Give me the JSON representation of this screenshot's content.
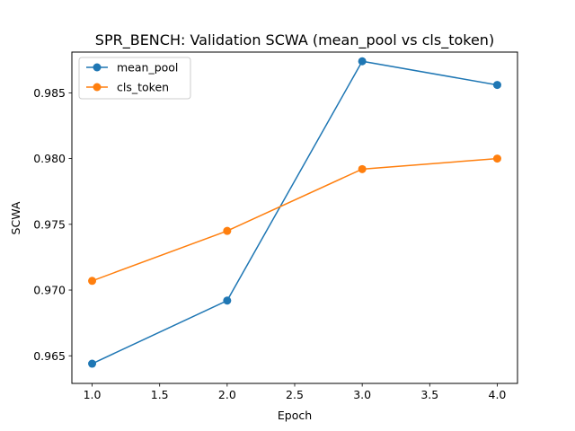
{
  "chart_data": {
    "type": "line",
    "title": "SPR_BENCH: Validation SCWA (mean_pool vs cls_token)",
    "xlabel": "Epoch",
    "ylabel": "SCWA",
    "xlim": [
      0.85,
      4.15
    ],
    "ylim": [
      0.9629,
      0.9881
    ],
    "xticks": [
      1.0,
      1.5,
      2.0,
      2.5,
      3.0,
      3.5,
      4.0
    ],
    "xtick_labels": [
      "1.0",
      "1.5",
      "2.0",
      "2.5",
      "3.0",
      "3.5",
      "4.0"
    ],
    "yticks": [
      0.965,
      0.97,
      0.975,
      0.98,
      0.985
    ],
    "ytick_labels": [
      "0.965",
      "0.970",
      "0.975",
      "0.980",
      "0.985"
    ],
    "grid": false,
    "legend_position": "top-left",
    "x": [
      1,
      2,
      3,
      4
    ],
    "series": [
      {
        "name": "mean_pool",
        "color": "#1f77b4",
        "marker": "circle",
        "values": [
          0.9644,
          0.9692,
          0.9874,
          0.9856
        ]
      },
      {
        "name": "cls_token",
        "color": "#ff7f0e",
        "marker": "circle",
        "values": [
          0.9707,
          0.9745,
          0.9792,
          0.98
        ]
      }
    ]
  }
}
